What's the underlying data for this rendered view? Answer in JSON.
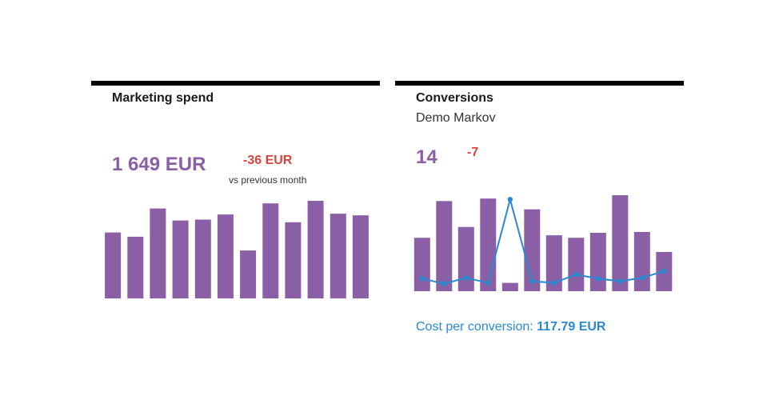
{
  "colors": {
    "accent": "#8b5fa6",
    "negative": "#d9443c",
    "line": "#2a8ad0",
    "rule": "#000000"
  },
  "marketing": {
    "title": "Marketing spend",
    "value": "1 649 EUR",
    "delta": "-36 EUR",
    "compare": "vs previous month"
  },
  "conversions": {
    "title": "Conversions",
    "subtitle": "Demo Markov",
    "value": "14",
    "delta": "-7",
    "cpc_label": "Cost per conversion: ",
    "cpc_value": "117.79 EUR"
  },
  "chart_data": [
    {
      "type": "bar",
      "title": "",
      "series": [
        {
          "values": [
            77,
            72,
            105,
            91,
            92,
            98,
            56,
            111,
            89,
            114,
            99,
            97
          ]
        }
      ],
      "ylim": [
        0,
        114
      ],
      "grid": false
    },
    {
      "type": "bar",
      "title": "",
      "series": [
        {
          "type": "bar",
          "values": [
            64,
            108,
            77,
            111,
            10,
            98,
            67,
            64,
            70,
            115,
            71,
            47
          ]
        },
        {
          "type": "line",
          "values": [
            15,
            9,
            16,
            10,
            110,
            12,
            10,
            20,
            15,
            12,
            16,
            24
          ]
        }
      ],
      "ylim": [
        0,
        115
      ],
      "grid": false
    }
  ]
}
